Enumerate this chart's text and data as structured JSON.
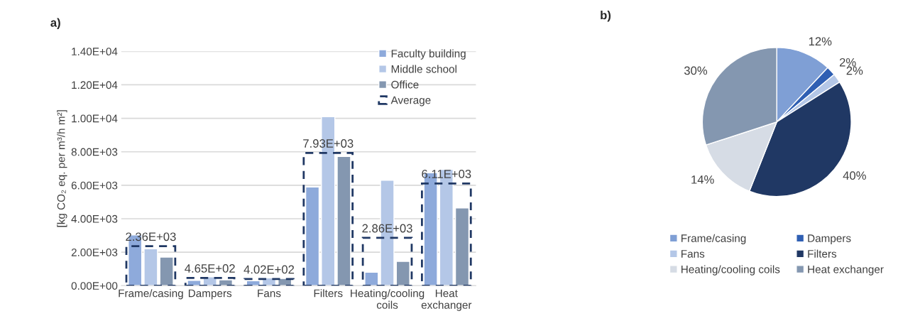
{
  "chart_data": [
    {
      "type": "bar",
      "title": "a)",
      "ylabel": "[kg CO₂ eq. per m³/h m²]",
      "categories": [
        "Frame/casing",
        "Dampers",
        "Fans",
        "Filters",
        "Heating/cooling coils",
        "Heat exchanger"
      ],
      "series": [
        {
          "name": "Faculty building",
          "color": "#8eaadb",
          "values": [
            3030,
            320,
            300,
            5900,
            800,
            6750
          ]
        },
        {
          "name": "Middle school",
          "color": "#b4c7e7",
          "values": [
            2200,
            530,
            470,
            10100,
            6300,
            6950
          ]
        },
        {
          "name": "Office",
          "color": "#8497b0",
          "values": [
            1710,
            350,
            430,
            7720,
            1450,
            4650
          ]
        },
        {
          "name": "Average",
          "color": "#203864",
          "line_style": "dashed",
          "values": [
            2360,
            465,
            402,
            7930,
            2860,
            6110
          ],
          "value_labels": [
            "2.36E+03",
            "4.65E+02",
            "4.02E+02",
            "7.93E+03",
            "2.86E+03",
            "6.11E+03"
          ]
        }
      ],
      "ylim": [
        0,
        14000
      ],
      "yticks": [
        {
          "value": 0,
          "label": "0.00E+00"
        },
        {
          "value": 2000,
          "label": "2.00E+03"
        },
        {
          "value": 4000,
          "label": "4.00E+03"
        },
        {
          "value": 6000,
          "label": "6.00E+03"
        },
        {
          "value": 8000,
          "label": "8.00E+03"
        },
        {
          "value": 10000,
          "label": "1.00E+04"
        },
        {
          "value": 12000,
          "label": "1.20E+04"
        },
        {
          "value": 14000,
          "label": "1.40E+04"
        }
      ],
      "grid": "y",
      "legend": "top right"
    },
    {
      "type": "pie",
      "title": "b)",
      "categories": [
        "Frame/casing",
        "Dampers",
        "Fans",
        "Filters",
        "Heating/cooling coils",
        "Heat exchanger"
      ],
      "values": [
        12,
        2,
        2,
        40,
        14,
        30
      ],
      "colors": [
        "#7f9fd5",
        "#2f5fb3",
        "#b4c7e7",
        "#203864",
        "#d6dce5",
        "#8497b0"
      ],
      "value_labels": [
        "12%",
        "2%",
        "2%",
        "40%",
        "14%",
        "30%"
      ],
      "legend": "bottom"
    }
  ]
}
